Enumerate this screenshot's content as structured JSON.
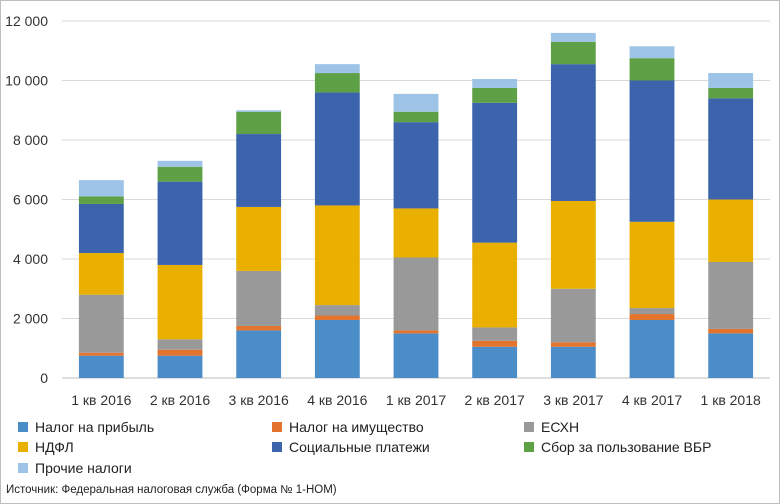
{
  "chart_data": {
    "type": "bar",
    "stacked": true,
    "categories": [
      "1 кв 2016",
      "2 кв 2016",
      "3 кв 2016",
      "4 кв 2016",
      "1 кв 2017",
      "2 кв 2017",
      "3 кв 2017",
      "4 кв 2017",
      "1 кв 2018"
    ],
    "ylim": [
      0,
      12000
    ],
    "yticks": [
      0,
      2000,
      4000,
      6000,
      8000,
      10000,
      12000
    ],
    "ytick_labels": [
      "0",
      "2 000",
      "4 000",
      "6 000",
      "8 000",
      "10 000",
      "12 000"
    ],
    "grid": true,
    "legend_position": "bottom",
    "series": [
      {
        "name": "Налог на прибыль",
        "color": "#4a8dc8",
        "values": [
          750,
          750,
          1600,
          1950,
          1500,
          1050,
          1050,
          1950,
          1500
        ]
      },
      {
        "name": "Налог на имущество",
        "color": "#e2742e",
        "values": [
          100,
          200,
          150,
          150,
          100,
          200,
          150,
          200,
          150
        ]
      },
      {
        "name": "ЕСХН",
        "color": "#999999",
        "values": [
          1950,
          350,
          1850,
          350,
          2450,
          450,
          1800,
          200,
          2250
        ]
      },
      {
        "name": "НДФЛ",
        "color": "#e9b000",
        "values": [
          1400,
          2500,
          2150,
          3350,
          1650,
          2850,
          2950,
          2900,
          2100
        ]
      },
      {
        "name": "Социальные платежи",
        "color": "#3b64ad",
        "values": [
          1650,
          2800,
          2450,
          3800,
          2900,
          4700,
          4600,
          4750,
          3400
        ]
      },
      {
        "name": "Сбор за пользование ВБР",
        "color": "#5ea045",
        "values": [
          250,
          500,
          750,
          650,
          350,
          500,
          750,
          750,
          350
        ]
      },
      {
        "name": "Прочие налоги",
        "color": "#9dc3e6",
        "values": [
          550,
          200,
          50,
          300,
          600,
          300,
          300,
          400,
          500
        ]
      }
    ]
  },
  "source_text": "Источник: Федеральная налоговая служба (Форма № 1-НОМ)"
}
